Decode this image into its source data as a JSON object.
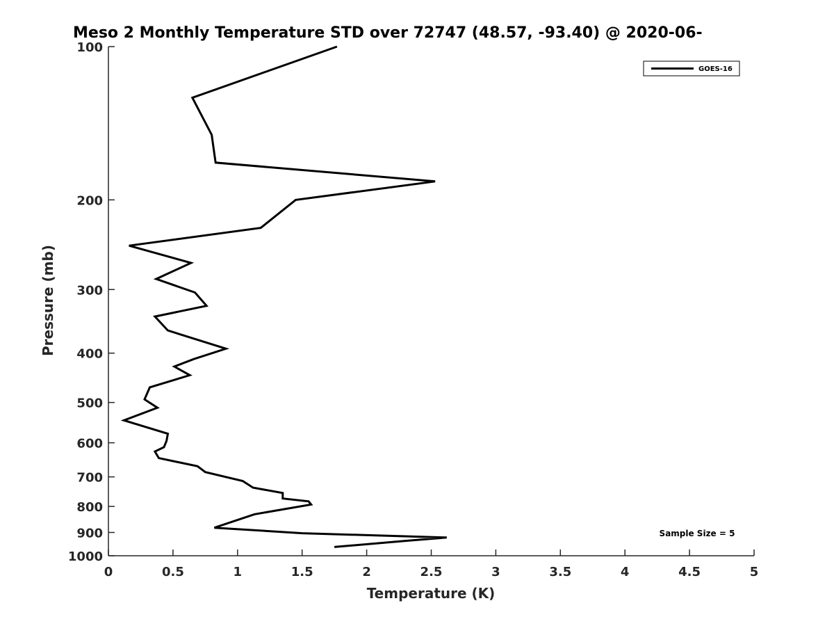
{
  "chart_data": {
    "type": "line",
    "title": "Meso 2 Monthly Temperature STD over 72747 (48.57, -93.40) @ 2020-06-",
    "xlabel": "Temperature (K)",
    "ylabel": "Pressure (mb)",
    "xlim": [
      0,
      5
    ],
    "ylim": [
      100,
      1000
    ],
    "y_scale": "log",
    "y_reversed": true,
    "x_ticks": [
      "0",
      "0.5",
      "1",
      "1.5",
      "2",
      "2.5",
      "3",
      "3.5",
      "4",
      "4.5",
      "5"
    ],
    "y_ticks": [
      "100",
      "200",
      "300",
      "400",
      "500",
      "600",
      "700",
      "800",
      "900",
      "1000"
    ],
    "grid": false,
    "legend_position": "top-right",
    "series": [
      {
        "name": "GOES-16",
        "color": "#000000",
        "x": [
          1.77,
          0.65,
          0.8,
          0.83,
          2.53,
          1.45,
          1.18,
          0.16,
          0.64,
          0.37,
          0.67,
          0.76,
          0.36,
          0.46,
          0.91,
          0.66,
          0.51,
          0.63,
          0.32,
          0.28,
          0.38,
          0.12,
          0.46,
          0.45,
          0.43,
          0.36,
          0.39,
          0.69,
          0.75,
          1.04,
          1.12,
          1.35,
          1.35,
          1.55,
          1.57,
          1.13,
          0.82,
          1.5,
          2.62,
          2.3,
          1.75
        ],
        "y": [
          100,
          126,
          149,
          169,
          184,
          200,
          227,
          246,
          266,
          286,
          304,
          323,
          339,
          361,
          392,
          411,
          425,
          442,
          467,
          493,
          512,
          542,
          576,
          595,
          612,
          624,
          643,
          667,
          685,
          713,
          735,
          753,
          772,
          782,
          793,
          829,
          881,
          903,
          921,
          935,
          961
        ]
      }
    ],
    "annotations": [
      "Sample Size = 5"
    ]
  }
}
